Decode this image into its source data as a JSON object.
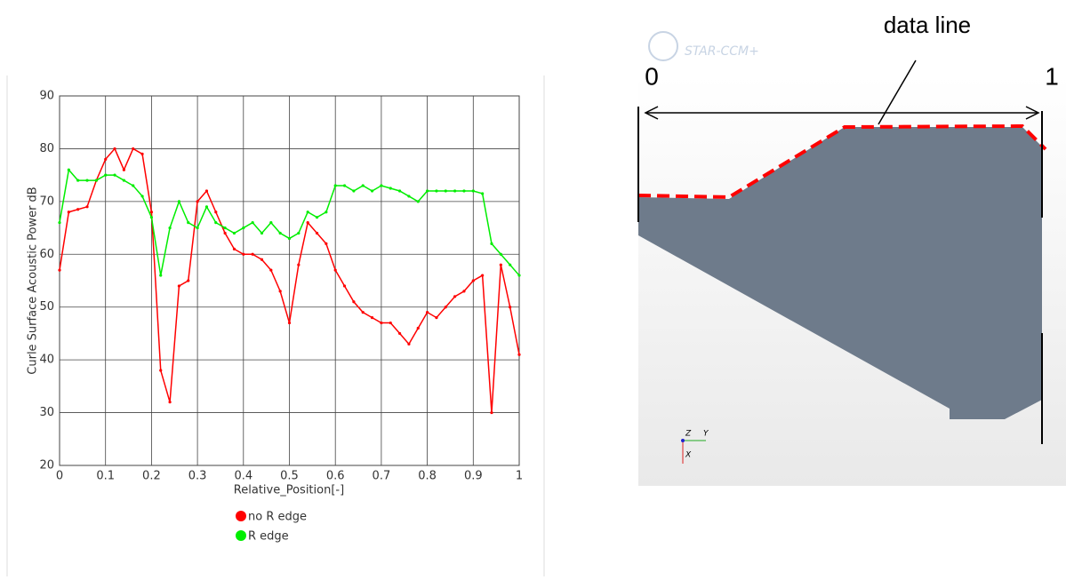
{
  "chart_data": {
    "type": "line",
    "x_label": "Relative_Position[-]",
    "y_label": "Curle Surface Acoustic Power dB",
    "x": [
      0,
      0.02,
      0.04,
      0.06,
      0.08,
      0.1,
      0.12,
      0.14,
      0.16,
      0.18,
      0.2,
      0.22,
      0.24,
      0.26,
      0.28,
      0.3,
      0.32,
      0.34,
      0.36,
      0.38,
      0.4,
      0.42,
      0.44,
      0.46,
      0.48,
      0.5,
      0.52,
      0.54,
      0.56,
      0.58,
      0.6,
      0.62,
      0.64,
      0.66,
      0.68,
      0.7,
      0.72,
      0.74,
      0.76,
      0.78,
      0.8,
      0.82,
      0.84,
      0.86,
      0.88,
      0.9,
      0.92,
      0.94,
      0.96,
      0.98,
      1
    ],
    "series": [
      {
        "name": "no R edge",
        "color": "#ff0000",
        "values": [
          57,
          68,
          68.5,
          69,
          74,
          78,
          80,
          76,
          80,
          79,
          68,
          38,
          32,
          54,
          55,
          70,
          72,
          68,
          64,
          61,
          60,
          60,
          59,
          57,
          53,
          47,
          58,
          66,
          64,
          62,
          57,
          54,
          51,
          49,
          48,
          47,
          47,
          45,
          43,
          46,
          49,
          48,
          50,
          52,
          53,
          55,
          56,
          30,
          58,
          50,
          41
        ]
      },
      {
        "name": "R edge",
        "color": "#00ee00",
        "values": [
          66,
          76,
          74,
          74,
          74,
          75,
          75,
          74,
          73,
          71,
          67,
          56,
          65,
          70,
          66,
          65,
          69,
          66,
          65,
          64,
          65,
          66,
          64,
          66,
          64,
          63,
          64,
          68,
          67,
          68,
          73,
          73,
          72,
          73,
          72,
          73,
          72.5,
          72,
          71,
          70,
          72,
          72,
          72,
          72,
          72,
          72,
          71.5,
          62,
          60,
          58,
          56
        ]
      }
    ],
    "xlim": [
      0,
      1
    ],
    "ylim": [
      20,
      90
    ],
    "xticks": [
      0,
      0.1,
      0.2,
      0.3,
      0.4,
      0.5,
      0.6,
      0.7,
      0.8,
      0.9,
      1
    ],
    "yticks": [
      20,
      30,
      40,
      50,
      60,
      70,
      80,
      90
    ],
    "grid": true
  },
  "diagram": {
    "annotation": "data line",
    "start_label": "0",
    "end_label": "1",
    "logo": "STAR-CCM+",
    "axes": {
      "z": "Z",
      "y": "Y",
      "x": "X"
    }
  }
}
